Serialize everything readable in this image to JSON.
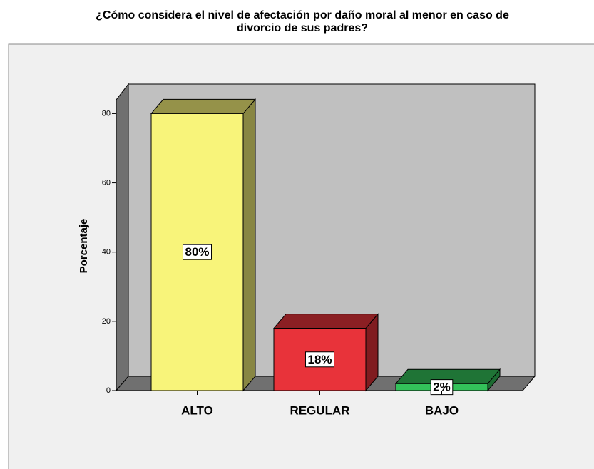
{
  "chart_data": {
    "type": "bar3d",
    "title": [
      "¿Cómo considera el nivel de afectación por daño moral al menor en caso de",
      "divorcio de sus padres?"
    ],
    "ylabel": "Porcentaje",
    "categories": [
      "ALTO",
      "REGULAR",
      "BAJO"
    ],
    "values": [
      80,
      18,
      2
    ],
    "value_labels": [
      "80%",
      "18%",
      "2%"
    ],
    "colors": [
      "#f8f47a",
      "#e8333a",
      "#33c25a"
    ],
    "ylim": [
      0,
      84
    ],
    "yticks": [
      0,
      20,
      40,
      60,
      80
    ]
  }
}
